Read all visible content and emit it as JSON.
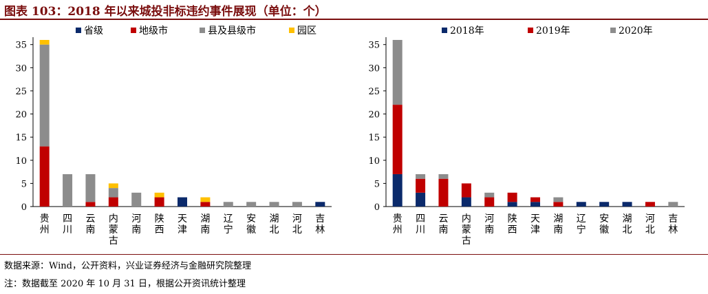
{
  "title": "图表 103：2018 年以来城投非标违约事件展现（单位：个）",
  "notes": {
    "source": "数据来源：Wind，公开资料，兴业证券经济与金融研究院整理",
    "footnote": "注：数据截至 2020 年 10 月 31 日，根据公开资讯统计整理"
  },
  "chart_data": [
    {
      "type": "bar",
      "stacked": true,
      "categories": [
        "贵州",
        "四川",
        "云南",
        "内蒙古",
        "河南",
        "陕西",
        "天津",
        "湖南",
        "辽宁",
        "安徽",
        "湖北",
        "河北",
        "吉林"
      ],
      "series": [
        {
          "name": "省级",
          "color": "#0b2a6b",
          "values": [
            0,
            0,
            0,
            0,
            0,
            0,
            2,
            0,
            0,
            0,
            0,
            0,
            1
          ]
        },
        {
          "name": "地级市",
          "color": "#c00000",
          "values": [
            13,
            0,
            1,
            2,
            0,
            2,
            0,
            1,
            0,
            0,
            0,
            0,
            0
          ]
        },
        {
          "name": "县及县级市",
          "color": "#8c8c8c",
          "values": [
            22,
            7,
            6,
            2,
            3,
            0,
            0,
            0,
            1,
            1,
            1,
            1,
            0
          ]
        },
        {
          "name": "园区",
          "color": "#ffc000",
          "values": [
            1,
            0,
            0,
            1,
            0,
            1,
            0,
            1,
            0,
            0,
            0,
            0,
            0
          ]
        }
      ],
      "ylim": [
        0,
        36
      ],
      "yticks": [
        0,
        5,
        10,
        15,
        20,
        25,
        30,
        35
      ],
      "legend_position": "top"
    },
    {
      "type": "bar",
      "stacked": true,
      "categories": [
        "贵州",
        "四川",
        "云南",
        "内蒙古",
        "河南",
        "陕西",
        "天津",
        "湖南",
        "辽宁",
        "安徽",
        "湖北",
        "河北",
        "吉林"
      ],
      "series": [
        {
          "name": "2018年",
          "color": "#0b2a6b",
          "values": [
            7,
            3,
            0,
            2,
            0,
            1,
            1,
            0,
            1,
            1,
            1,
            0,
            0
          ]
        },
        {
          "name": "2019年",
          "color": "#c00000",
          "values": [
            15,
            3,
            6,
            3,
            2,
            2,
            1,
            1,
            0,
            0,
            0,
            1,
            0
          ]
        },
        {
          "name": "2020年",
          "color": "#8c8c8c",
          "values": [
            14,
            1,
            1,
            0,
            1,
            0,
            0,
            1,
            0,
            0,
            0,
            0,
            1
          ]
        }
      ],
      "ylim": [
        0,
        36
      ],
      "yticks": [
        0,
        5,
        10,
        15,
        20,
        25,
        30,
        35
      ],
      "legend_position": "top"
    }
  ]
}
